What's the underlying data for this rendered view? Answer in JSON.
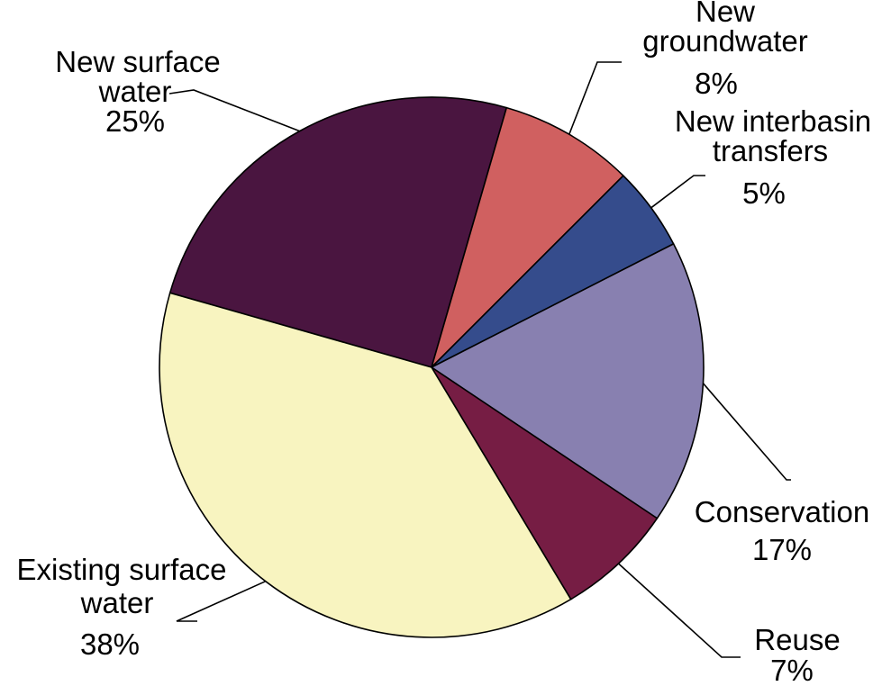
{
  "chart_data": {
    "type": "pie",
    "title": "",
    "slices": [
      {
        "label": [
          "New surface",
          "water"
        ],
        "value": 25,
        "value_label": "25%",
        "color": "#4a1540"
      },
      {
        "label": [
          "New",
          "groundwater"
        ],
        "value": 8,
        "value_label": "8%",
        "color": "#d06060"
      },
      {
        "label": [
          "New interbasin",
          "transfers"
        ],
        "value": 5,
        "value_label": "5%",
        "color": "#354c8c"
      },
      {
        "label": [
          "Conservation"
        ],
        "value": 17,
        "value_label": "17%",
        "color": "#8880b0"
      },
      {
        "label": [
          "Reuse"
        ],
        "value": 7,
        "value_label": "7%",
        "color": "#761d44"
      },
      {
        "label": [
          "Existing surface",
          "water"
        ],
        "value": 38,
        "value_label": "38%",
        "color": "#f8f4c0"
      }
    ]
  }
}
